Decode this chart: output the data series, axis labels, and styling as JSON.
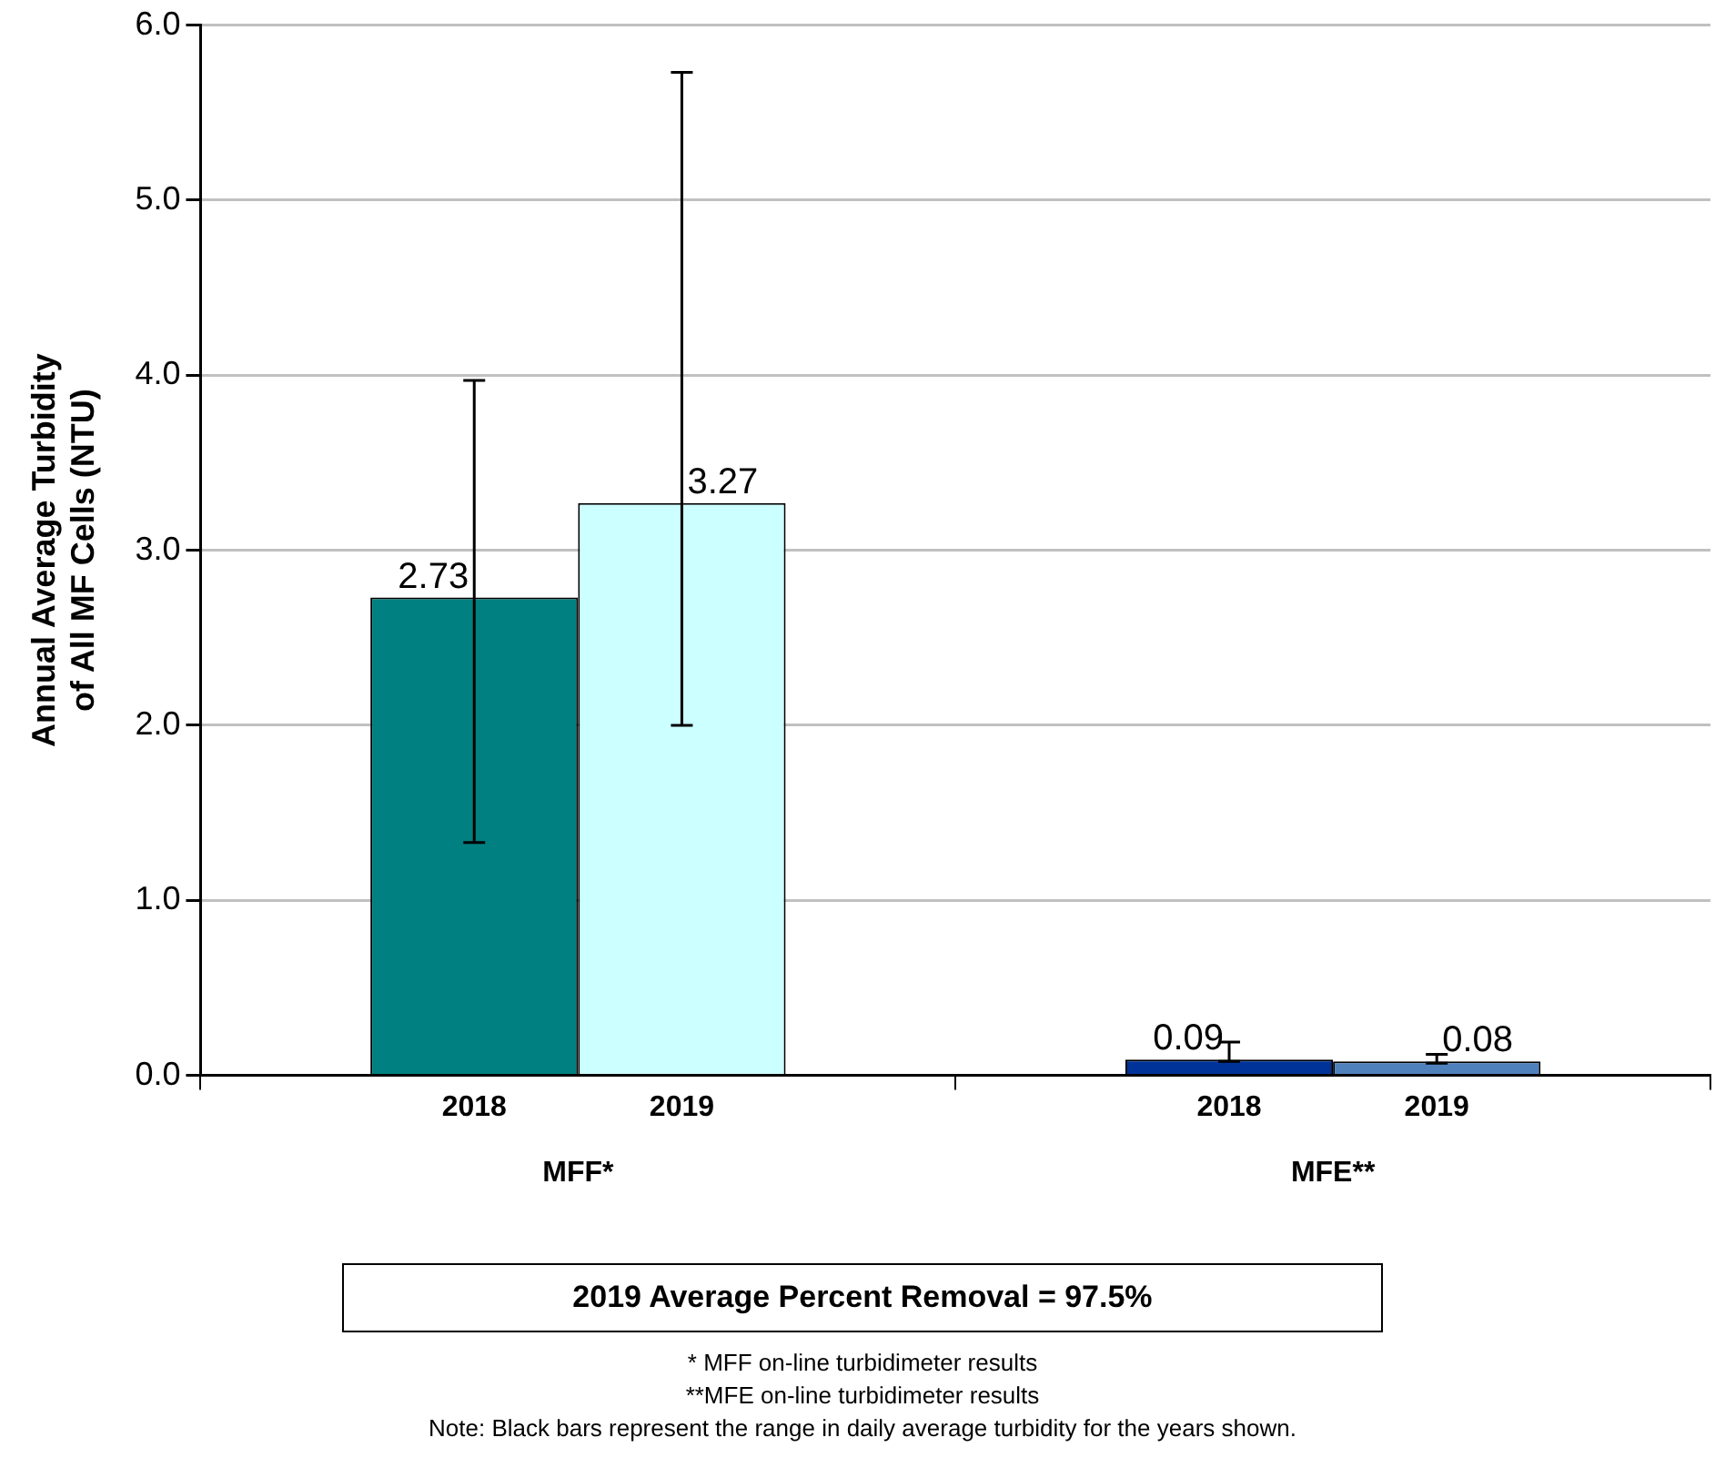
{
  "chart_data": {
    "type": "bar",
    "ylabel": "Annual Average Turbidity of All MF Cells (NTU)",
    "categories": [
      "MFF*",
      "MFE**"
    ],
    "series": [
      {
        "name": "2018",
        "colors": [
          "#008080",
          "#003399"
        ],
        "values": [
          2.73,
          0.09
        ],
        "errors": [
          [
            1.33,
            3.97
          ],
          [
            0.08,
            0.19
          ]
        ]
      },
      {
        "name": "2019",
        "colors": [
          "#ccffff",
          "#4f81bd"
        ],
        "values": [
          3.27,
          0.08
        ],
        "errors": [
          [
            2.0,
            5.73
          ],
          [
            0.07,
            0.12
          ]
        ]
      }
    ],
    "ylim": [
      0,
      6
    ],
    "yticks": [
      {
        "value": 0,
        "label": "0.0"
      },
      {
        "value": 1,
        "label": "1.0"
      },
      {
        "value": 2,
        "label": "2.0"
      },
      {
        "value": 3,
        "label": "3.0"
      },
      {
        "value": 4,
        "label": "4.0"
      },
      {
        "value": 5,
        "label": "5.0"
      },
      {
        "value": 6,
        "label": "6.0"
      }
    ],
    "grid": "y",
    "legend": false,
    "data_labels": true,
    "annotations": [
      "2019 Average Percent Removal = 97.5%",
      "* MFF on-line turbidimeter results",
      "**MFE on-line turbidimeter results",
      "Note: Black bars represent the range in daily average turbidity for the years shown."
    ]
  }
}
